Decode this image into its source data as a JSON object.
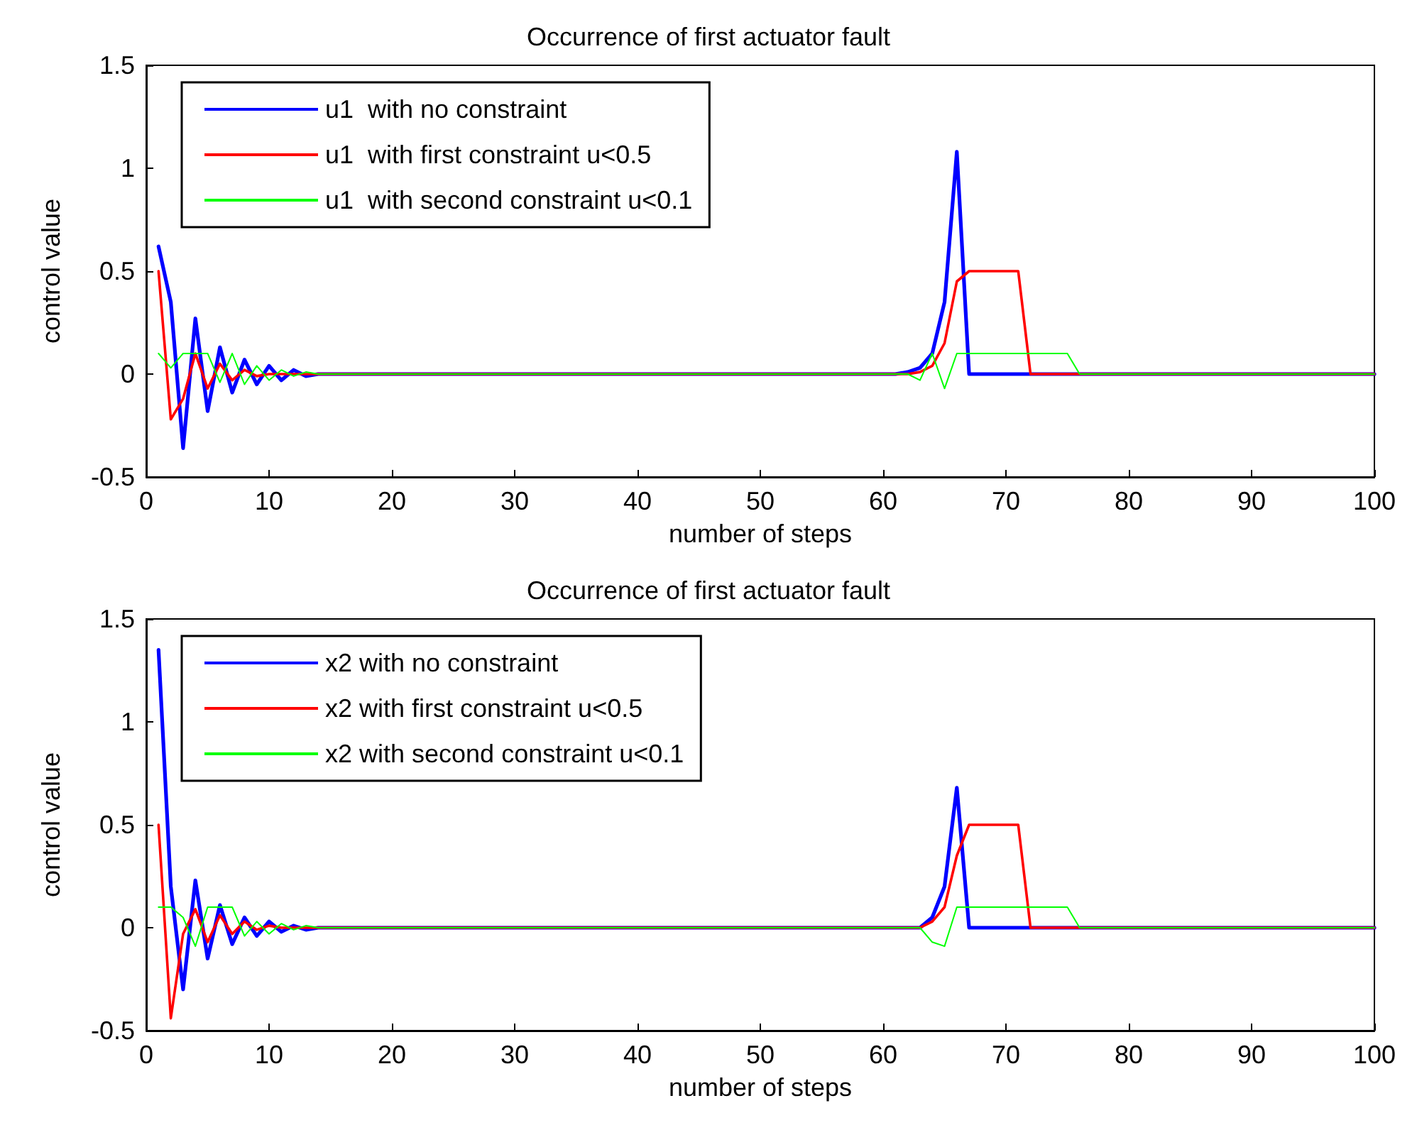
{
  "chart_data": [
    {
      "type": "line",
      "title": "Occurrence of first actuator fault",
      "xlabel": "number of steps",
      "ylabel": "control value",
      "xlim": [
        0,
        100
      ],
      "xticks": [
        0,
        10,
        20,
        30,
        40,
        50,
        60,
        70,
        80,
        90,
        100
      ],
      "ylim": [
        -0.5,
        1.5
      ],
      "yticks": [
        -0.5,
        0,
        0.5,
        1,
        1.5
      ],
      "grid": false,
      "legend": "top left",
      "marker": "none",
      "line_style": "solid",
      "series": [
        {
          "name": "u1  with no constraint",
          "color": "#0000ff",
          "x": [
            1,
            2,
            3,
            4,
            5,
            6,
            7,
            8,
            9,
            10,
            11,
            12,
            13,
            14,
            61,
            62,
            63,
            64,
            65,
            66,
            67,
            100
          ],
          "values": [
            0.62,
            0.35,
            -0.36,
            0.27,
            -0.18,
            0.13,
            -0.09,
            0.07,
            -0.05,
            0.04,
            -0.03,
            0.02,
            -0.01,
            0,
            0,
            0.01,
            0.03,
            0.1,
            0.35,
            1.08,
            0,
            0
          ]
        },
        {
          "name": "u1  with first constraint u<0.5",
          "color": "#ff0000",
          "x": [
            1,
            2,
            3,
            4,
            5,
            6,
            7,
            8,
            9,
            10,
            62,
            63,
            64,
            65,
            66,
            67,
            71,
            72,
            100
          ],
          "values": [
            0.5,
            -0.22,
            -0.12,
            0.1,
            -0.07,
            0.05,
            -0.03,
            0.02,
            -0.01,
            0,
            0,
            0.01,
            0.04,
            0.15,
            0.45,
            0.5,
            0.5,
            0,
            0
          ]
        },
        {
          "name": "u1  with second constraint u<0.1",
          "color": "#00ff00",
          "x": [
            1,
            2,
            3,
            4,
            5,
            6,
            7,
            8,
            9,
            10,
            11,
            12,
            13,
            14,
            62,
            63,
            64,
            65,
            66,
            75,
            76,
            100
          ],
          "values": [
            0.1,
            0.03,
            0.1,
            0.1,
            0.1,
            -0.04,
            0.1,
            -0.05,
            0.04,
            -0.03,
            0.02,
            -0.01,
            0.01,
            0,
            0,
            -0.03,
            0.1,
            -0.07,
            0.1,
            0.1,
            0,
            0
          ]
        }
      ]
    },
    {
      "type": "line",
      "title": "Occurrence of first actuator fault",
      "xlabel": "number of steps",
      "ylabel": "control value",
      "xlim": [
        0,
        100
      ],
      "xticks": [
        0,
        10,
        20,
        30,
        40,
        50,
        60,
        70,
        80,
        90,
        100
      ],
      "ylim": [
        -0.5,
        1.5
      ],
      "yticks": [
        -0.5,
        0,
        0.5,
        1,
        1.5
      ],
      "grid": false,
      "legend": "top left",
      "marker": "none",
      "line_style": "solid",
      "series": [
        {
          "name": "x2 with no constraint",
          "color": "#0000ff",
          "x": [
            1,
            2,
            3,
            4,
            5,
            6,
            7,
            8,
            9,
            10,
            11,
            12,
            13,
            14,
            63,
            64,
            65,
            66,
            67,
            100
          ],
          "values": [
            1.35,
            0.2,
            -0.3,
            0.23,
            -0.15,
            0.11,
            -0.08,
            0.05,
            -0.04,
            0.03,
            -0.02,
            0.01,
            -0.01,
            0,
            0,
            0.05,
            0.2,
            0.68,
            0,
            0
          ]
        },
        {
          "name": "x2 with first constraint u<0.5",
          "color": "#ff0000",
          "x": [
            1,
            2,
            3,
            4,
            5,
            6,
            7,
            8,
            9,
            10,
            11,
            63,
            64,
            65,
            66,
            67,
            71,
            72,
            100
          ],
          "values": [
            0.5,
            -0.44,
            -0.03,
            0.09,
            -0.07,
            0.06,
            -0.03,
            0.03,
            -0.01,
            0.01,
            0,
            0,
            0.03,
            0.1,
            0.35,
            0.5,
            0.5,
            0,
            0
          ]
        },
        {
          "name": "x2 with second constraint u<0.1",
          "color": "#00ff00",
          "x": [
            1,
            2,
            3,
            4,
            5,
            6,
            7,
            8,
            9,
            10,
            11,
            12,
            13,
            14,
            63,
            64,
            65,
            66,
            75,
            76,
            100
          ],
          "values": [
            0.1,
            0.1,
            0.05,
            -0.09,
            0.1,
            0.1,
            0.1,
            -0.04,
            0.03,
            -0.03,
            0.02,
            -0.01,
            0.01,
            0,
            0,
            -0.07,
            -0.09,
            0.1,
            0.1,
            0,
            0
          ]
        }
      ]
    }
  ]
}
